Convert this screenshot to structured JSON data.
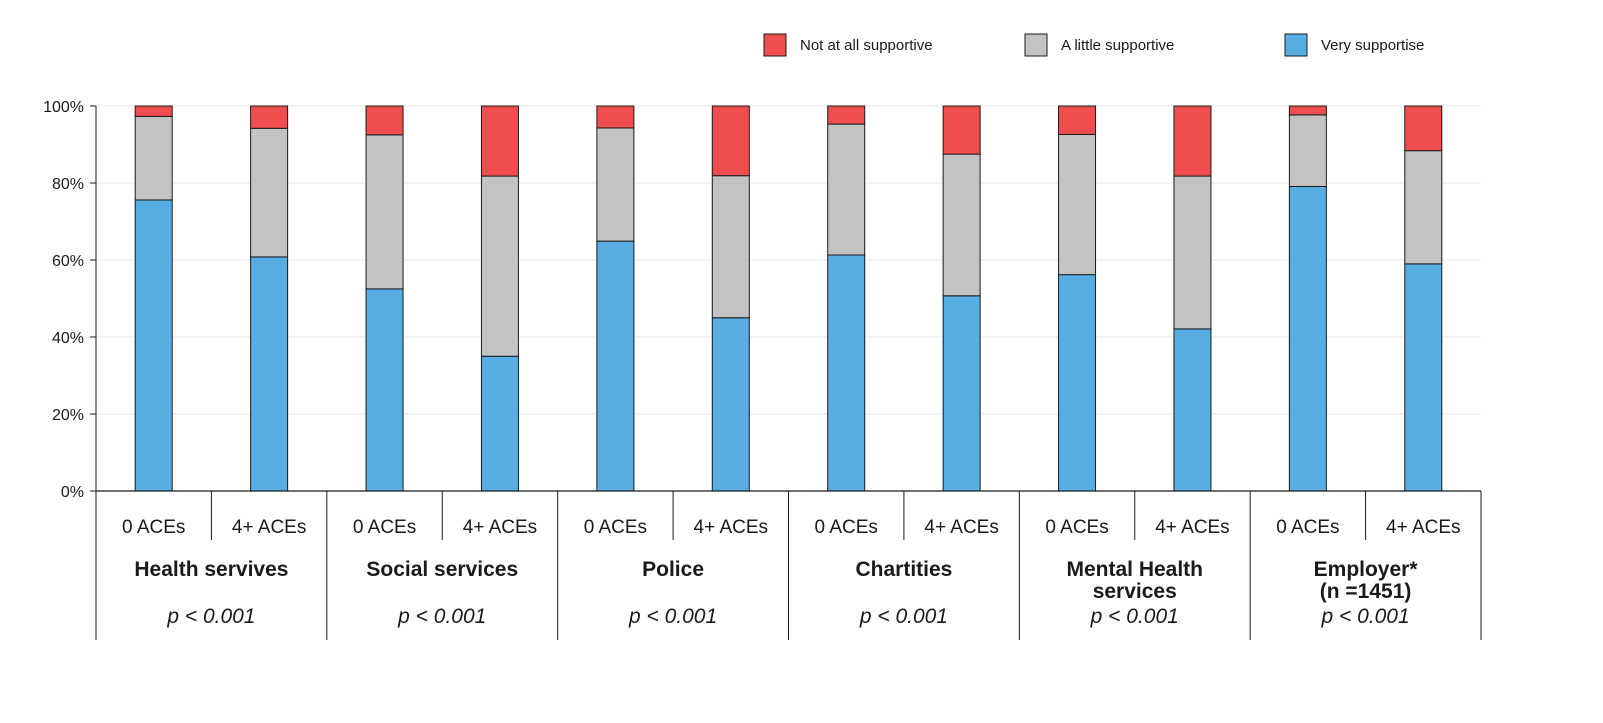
{
  "chart_data": {
    "type": "bar",
    "stacked": true,
    "y_axis": {
      "ylim": [
        0,
        100
      ],
      "ticks": [
        0,
        20,
        40,
        60,
        80,
        100
      ],
      "tick_labels": [
        "0%",
        "20%",
        "40%",
        "60%",
        "80%",
        "100%"
      ]
    },
    "grid": true,
    "legend": {
      "position": "top-right",
      "entries": [
        "Not at all supportive",
        "A little supportive",
        "Very supportise"
      ]
    },
    "colors": {
      "very": "#58ADE2",
      "little": "#C2C3C2",
      "not": "#F04E4E",
      "border": "#1a1a1a",
      "grid": "#e6e6e6"
    },
    "groups": [
      {
        "label_lines": [
          "Health servives"
        ],
        "p_value": "p < 0.001",
        "bars": [
          {
            "category": "0 ACEs",
            "very": 75.6,
            "little": 21.7,
            "not": 2.7
          },
          {
            "category": "4+ ACEs",
            "very": 60.8,
            "little": 33.4,
            "not": 5.8
          }
        ]
      },
      {
        "label_lines": [
          "Social services"
        ],
        "p_value": "p < 0.001",
        "bars": [
          {
            "category": "0 ACEs",
            "very": 52.5,
            "little": 40.0,
            "not": 7.5
          },
          {
            "category": "4+ ACEs",
            "very": 35.0,
            "little": 46.8,
            "not": 18.2
          }
        ]
      },
      {
        "label_lines": [
          "Police"
        ],
        "p_value": "p < 0.001",
        "bars": [
          {
            "category": "0 ACEs",
            "very": 64.9,
            "little": 29.4,
            "not": 5.7
          },
          {
            "category": "4+ ACEs",
            "very": 45.0,
            "little": 36.9,
            "not": 18.1
          }
        ]
      },
      {
        "label_lines": [
          "Chartities"
        ],
        "p_value": "p < 0.001",
        "bars": [
          {
            "category": "0 ACEs",
            "very": 61.3,
            "little": 34.0,
            "not": 4.7
          },
          {
            "category": "4+ ACEs",
            "very": 50.7,
            "little": 36.8,
            "not": 12.5
          }
        ]
      },
      {
        "label_lines": [
          "Mental Health",
          "services"
        ],
        "p_value": "p < 0.001",
        "bars": [
          {
            "category": "0 ACEs",
            "very": 56.2,
            "little": 36.4,
            "not": 7.4
          },
          {
            "category": "4+ ACEs",
            "very": 42.1,
            "little": 39.7,
            "not": 18.2
          }
        ]
      },
      {
        "label_lines": [
          "Employer*",
          "(n =1451)"
        ],
        "p_value": "p < 0.001",
        "bars": [
          {
            "category": "0 ACEs",
            "very": 79.1,
            "little": 18.6,
            "not": 2.3
          },
          {
            "category": "4+ ACEs",
            "very": 59.0,
            "little": 29.4,
            "not": 11.6
          }
        ]
      }
    ]
  }
}
